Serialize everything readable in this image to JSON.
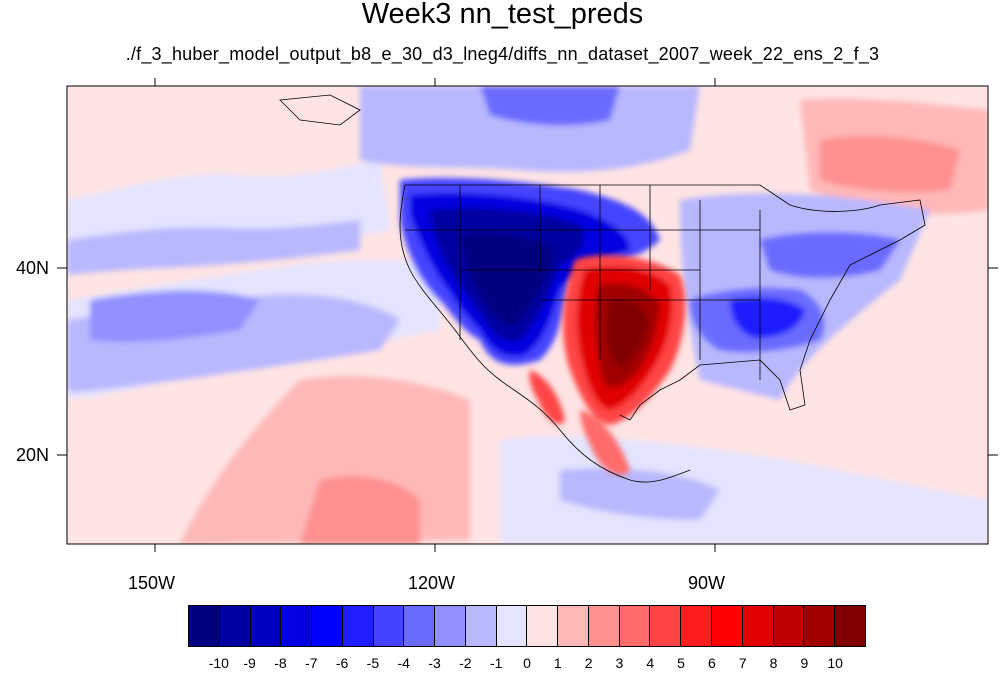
{
  "title": "Week3 nn_test_preds",
  "subtitle": "./f_3_huber_model_output_b8_e_30_d3_lneg4/diffs_nn_dataset_2007_week_22_ens_2_f_3",
  "axes": {
    "x_ticks": [
      "150W",
      "120W",
      "90W"
    ],
    "y_ticks": [
      "40N",
      "20N"
    ]
  },
  "colorbar": {
    "colors": [
      "#000080",
      "#0000a0",
      "#0000c0",
      "#0000e0",
      "#0000ff",
      "#1e1eff",
      "#4444ff",
      "#6a6aff",
      "#9090ff",
      "#b8b8ff",
      "#e4e4ff",
      "#ffe4e4",
      "#ffb8b8",
      "#ff9090",
      "#ff6a6a",
      "#ff4444",
      "#ff1e1e",
      "#ff0000",
      "#e00000",
      "#c00000",
      "#a00000",
      "#800000"
    ],
    "labels": [
      "-10",
      "-9",
      "-8",
      "-7",
      "-6",
      "-5",
      "-4",
      "-3",
      "-2",
      "-1",
      "0",
      "1",
      "2",
      "3",
      "4",
      "5",
      "6",
      "7",
      "8",
      "9",
      "10"
    ]
  }
}
